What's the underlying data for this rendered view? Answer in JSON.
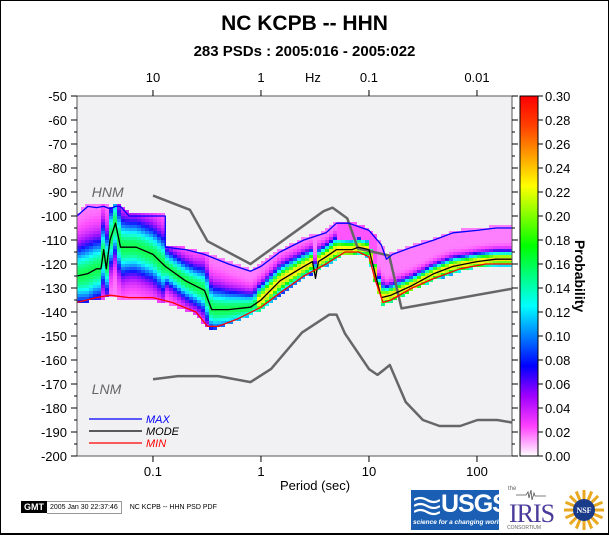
{
  "title": "NC KCPB -- HHN",
  "subtitle": "283 PSDs : 2005:016 - 2005:022",
  "footer": {
    "gmt_badge": "GMT",
    "timestamp": "2005 Jan 30 22:37:46",
    "caption": "NC KCPB -- HHN PSD PDF"
  },
  "logos": {
    "usgs": {
      "name": "USGS",
      "tagline": "science for a changing world"
    },
    "iris": {
      "top": "the",
      "name": "IRIS",
      "bottom": "CONSORTIUM"
    },
    "nsf": {
      "name": "NSF"
    }
  },
  "chart_data": {
    "type": "heatmap",
    "title": "NC KCPB -- HHN",
    "subtitle": "283 PSDs : 2005:016 - 2005:022",
    "xlabel": "Period (sec)",
    "x_scale": "log",
    "xlim": [
      0.0198,
      211
    ],
    "x_ticks": [
      0.1,
      1,
      10,
      100
    ],
    "x_tick_labels": [
      "0.1",
      "1",
      "10",
      "100"
    ],
    "top_axis": {
      "label": "Hz",
      "ticks": [
        10,
        1,
        0.1,
        0.01
      ],
      "tick_labels": [
        "10",
        "1",
        "0.1",
        "0.01"
      ]
    },
    "ylabel": "",
    "ylim": [
      -200,
      -50
    ],
    "y_ticks": [
      -50,
      -60,
      -70,
      -80,
      -90,
      -100,
      -110,
      -120,
      -130,
      -140,
      -150,
      -160,
      -170,
      -180,
      -190,
      -200
    ],
    "grid": false,
    "colorbar": {
      "label": "Probability",
      "range": [
        0.0,
        0.3
      ],
      "ticks": [
        0.0,
        0.02,
        0.04,
        0.06,
        0.08,
        0.1,
        0.12,
        0.14,
        0.16,
        0.18,
        0.2,
        0.22,
        0.24,
        0.26,
        0.28,
        0.3
      ],
      "tick_labels": [
        "0.00",
        "0.02",
        "0.04",
        "0.06",
        "0.08",
        "0.10",
        "0.12",
        "0.14",
        "0.16",
        "0.18",
        "0.20",
        "0.22",
        "0.24",
        "0.26",
        "0.28",
        "0.30"
      ],
      "colors": [
        "#ffffff",
        "#ff40ff",
        "#a000ff",
        "#0000ff",
        "#0080ff",
        "#00ffff",
        "#00ff80",
        "#00ff00",
        "#80ff00",
        "#ffff00",
        "#ffa000",
        "#ff4000",
        "#ff0000"
      ]
    },
    "legend": {
      "position": "bottom-left",
      "entries": [
        {
          "label": "MAX",
          "color": "#0000ff"
        },
        {
          "label": "MODE",
          "color": "#000000"
        },
        {
          "label": "MIN",
          "color": "#ff0000"
        }
      ]
    },
    "annotations": [
      {
        "text": "HNM",
        "period": 0.035,
        "db": -90
      },
      {
        "text": "LNM",
        "period": 0.035,
        "db": -172
      }
    ],
    "series": [
      {
        "name": "HNM",
        "color": "#666666",
        "period": [
          0.1,
          0.22,
          0.32,
          0.8,
          3.8,
          4.6,
          6.3,
          7.9,
          15.4,
          20,
          354.8
        ],
        "db": [
          -91.5,
          -97.4,
          -110.5,
          -120,
          -98,
          -96.5,
          -101,
          -113.5,
          -116.5,
          -138.5,
          -128.5
        ]
      },
      {
        "name": "LNM",
        "color": "#666666",
        "period": [
          0.1,
          0.17,
          0.4,
          0.8,
          1.24,
          2.4,
          4.3,
          5.0,
          6.0,
          10.0,
          12.0,
          15.6,
          21.9,
          31.6,
          45.0,
          70.0,
          101.0,
          154.0,
          328.0
        ],
        "db": [
          -168,
          -166.7,
          -166.7,
          -169.2,
          -163.7,
          -148.6,
          -141.1,
          -141.1,
          -149.0,
          -163.8,
          -166.2,
          -162.1,
          -177.5,
          -185.0,
          -187.5,
          -187.5,
          -185.0,
          -185.0,
          -187.5
        ]
      },
      {
        "name": "MAX",
        "color": "#0000ff",
        "period": [
          0.0198,
          0.025,
          0.03,
          0.035,
          0.04,
          0.045,
          0.05,
          0.06,
          0.1,
          0.13,
          0.13,
          0.2,
          0.3,
          0.5,
          0.8,
          1.0,
          1.5,
          2.5,
          4.0,
          5.0,
          6.5,
          10.0,
          13.0,
          14.5,
          16.5,
          25.0,
          40.0,
          60.0,
          100.0,
          150.0,
          211.0
        ],
        "db": [
          -100,
          -96,
          -96.5,
          -96,
          -97,
          -96,
          -96,
          -100,
          -100,
          -100,
          -113,
          -114,
          -116,
          -120,
          -123,
          -121,
          -115,
          -110,
          -107,
          -103,
          -103,
          -106,
          -112,
          -118,
          -116,
          -113,
          -110,
          -107,
          -106,
          -105,
          -105
        ]
      },
      {
        "name": "MODE",
        "color": "#000000",
        "period": [
          0.0198,
          0.025,
          0.03,
          0.033,
          0.035,
          0.037,
          0.04,
          0.045,
          0.05,
          0.07,
          0.1,
          0.13,
          0.2,
          0.3,
          0.35,
          0.5,
          0.8,
          1.0,
          1.5,
          2.5,
          3.0,
          3.2,
          3.4,
          4.0,
          5.0,
          7.0,
          8.0,
          10.0,
          13.0,
          16.0,
          25.0,
          40.0,
          60.0,
          100.0,
          150.0,
          211.0
        ],
        "db": [
          -125,
          -124,
          -122,
          -122,
          -114,
          -122,
          -110,
          -103,
          -113,
          -113,
          -116,
          -121,
          -127,
          -131,
          -139,
          -139,
          -138,
          -135,
          -127,
          -121,
          -119,
          -126,
          -119,
          -117,
          -114,
          -114,
          -113,
          -114,
          -134,
          -133,
          -129,
          -124,
          -121,
          -119,
          -118,
          -118
        ]
      },
      {
        "name": "MIN",
        "color": "#ff0000",
        "period": [
          0.0198,
          0.03,
          0.04,
          0.06,
          0.1,
          0.15,
          0.25,
          0.32,
          0.4,
          0.6,
          1.0,
          1.5,
          2.5,
          4.0,
          6.0,
          8.0,
          10.0,
          11.5,
          13.5,
          16.0,
          25.0,
          40.0,
          70.0,
          120.0,
          211.0
        ],
        "db": [
          -136,
          -134,
          -133,
          -134,
          -134,
          -136,
          -140,
          -146,
          -146,
          -143,
          -138,
          -132,
          -125,
          -120,
          -115,
          -115,
          -117,
          -127,
          -136,
          -135,
          -130,
          -126,
          -122,
          -120,
          -120
        ]
      }
    ],
    "density_band": {
      "description": "PDF probability density of 283 PSDs; bulk between MIN and MAX, peak probability ~0.2 near MODE",
      "peak_probability": 0.2
    }
  }
}
